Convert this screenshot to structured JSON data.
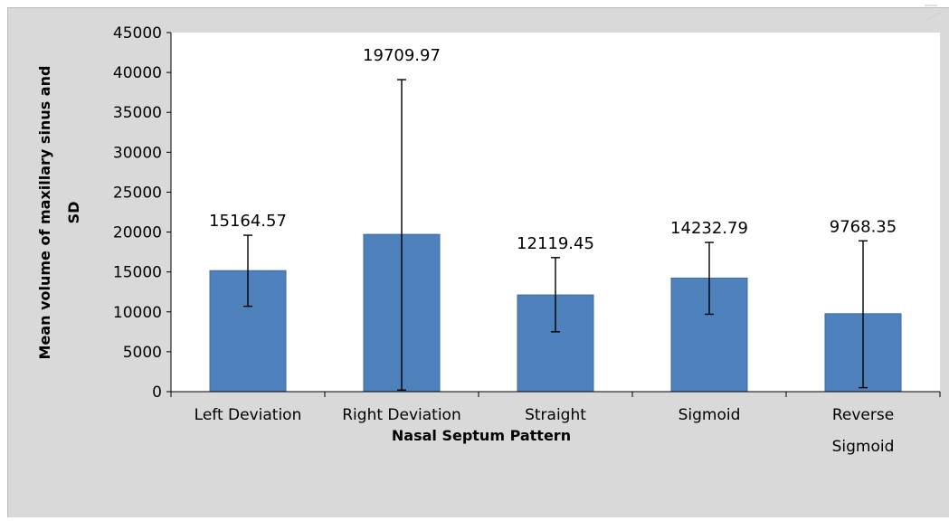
{
  "chart_data": {
    "type": "bar",
    "title": "",
    "xlabel": "Nasal Septum Pattern",
    "ylabel_lines": [
      "Mean volume of maxillary sinus and",
      "SD"
    ],
    "categories": [
      {
        "lines": [
          "Left Deviation"
        ]
      },
      {
        "lines": [
          "Right Deviation"
        ]
      },
      {
        "lines": [
          "Straight"
        ]
      },
      {
        "lines": [
          "Sigmoid"
        ]
      },
      {
        "lines": [
          "Reverse",
          "Sigmoid"
        ]
      }
    ],
    "values": [
      15164.57,
      19709.97,
      12119.45,
      14232.79,
      9768.35
    ],
    "value_labels": [
      "15164.57",
      "19709.97",
      "12119.45",
      "14232.79",
      "9768.35"
    ],
    "error_low": [
      10700,
      200,
      7500,
      9700,
      500
    ],
    "error_high": [
      19600,
      39100,
      16800,
      18700,
      18900
    ],
    "ylim": [
      0,
      45000
    ],
    "yticks": [
      0,
      5000,
      10000,
      15000,
      20000,
      25000,
      30000,
      35000,
      40000,
      45000
    ],
    "ytick_labels": [
      "0",
      "5000",
      "10000",
      "15000",
      "20000",
      "25000",
      "30000",
      "35000",
      "40000",
      "45000"
    ],
    "grid": false,
    "legend": "none",
    "colors": {
      "bar": "#4f81bd",
      "bar_edge": "#3c6aa1",
      "plot_bg": "#ffffff",
      "chart_bg": "#d9d9d9",
      "error_bar": "#000000"
    }
  }
}
